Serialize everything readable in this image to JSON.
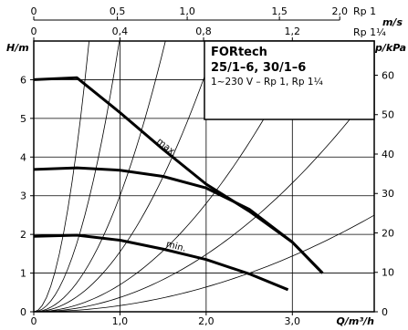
{
  "chart_data": {
    "type": "line",
    "title": "FORtech",
    "subtitle_line1": "25/1–6, 30/1–6",
    "subtitle_line2": "1~230 V – Rp 1, Rp 1¼",
    "xlabel": "Q/m³/h",
    "ylabel_left": "H/m",
    "ylabel_right": "p/kPa",
    "top_axis_unit": "m/s",
    "xlim": [
      0,
      3.95
    ],
    "ylim": [
      0,
      7.0
    ],
    "x_ticks": [
      "0",
      "1,0",
      "2,0",
      "3,0"
    ],
    "x_tick_values": [
      0,
      1,
      2,
      3
    ],
    "y_ticks_left": [
      "0",
      "1",
      "2",
      "3",
      "4",
      "5",
      "6"
    ],
    "y_tick_values_left": [
      0,
      1,
      2,
      3,
      4,
      5,
      6
    ],
    "y_ticks_right": [
      "0",
      "10",
      "20",
      "30",
      "40",
      "50",
      "60"
    ],
    "y_tick_values_right_kpa": [
      0,
      10,
      20,
      30,
      40,
      50,
      60
    ],
    "top_scale_rp1": {
      "ticks": [
        "0",
        "0,5",
        "1,0",
        "1,5",
        "2,0"
      ],
      "tick_q_values": [
        0,
        0.97,
        1.78,
        2.85,
        3.55
      ],
      "label": "Rp 1"
    },
    "top_scale_rp114": {
      "ticks": [
        "0",
        "0,4",
        "0,8",
        "1,2"
      ],
      "tick_q_values": [
        0,
        1.0,
        1.97,
        3.0
      ],
      "label": "Rp 1¼"
    },
    "series": [
      {
        "name": "max",
        "label": "max.",
        "stroke_width": 3,
        "x": [
          0,
          0.5,
          1.0,
          1.5,
          2.0,
          2.5,
          3.0,
          3.35
        ],
        "y": [
          6.0,
          6.05,
          5.15,
          4.2,
          3.3,
          2.6,
          1.8,
          1.0
        ]
      },
      {
        "name": "mid",
        "stroke_width": 3,
        "x": [
          0,
          0.5,
          1.0,
          1.5,
          2.0,
          2.5,
          3.0,
          3.35
        ],
        "y": [
          3.68,
          3.72,
          3.66,
          3.5,
          3.2,
          2.65,
          1.8,
          1.0
        ]
      },
      {
        "name": "min",
        "label": "min.",
        "stroke_width": 3,
        "x": [
          0,
          0.5,
          1.0,
          1.5,
          2.0,
          2.5,
          2.95
        ],
        "y": [
          1.95,
          1.98,
          1.85,
          1.62,
          1.35,
          0.98,
          0.57
        ]
      }
    ],
    "system_curves": [
      {
        "k": 17.0
      },
      {
        "k": 7.1
      },
      {
        "k": 3.0
      },
      {
        "k": 1.55
      },
      {
        "k": 0.7
      },
      {
        "k": 0.37
      },
      {
        "k": 0.16
      }
    ],
    "grid": true,
    "legend": "none"
  }
}
